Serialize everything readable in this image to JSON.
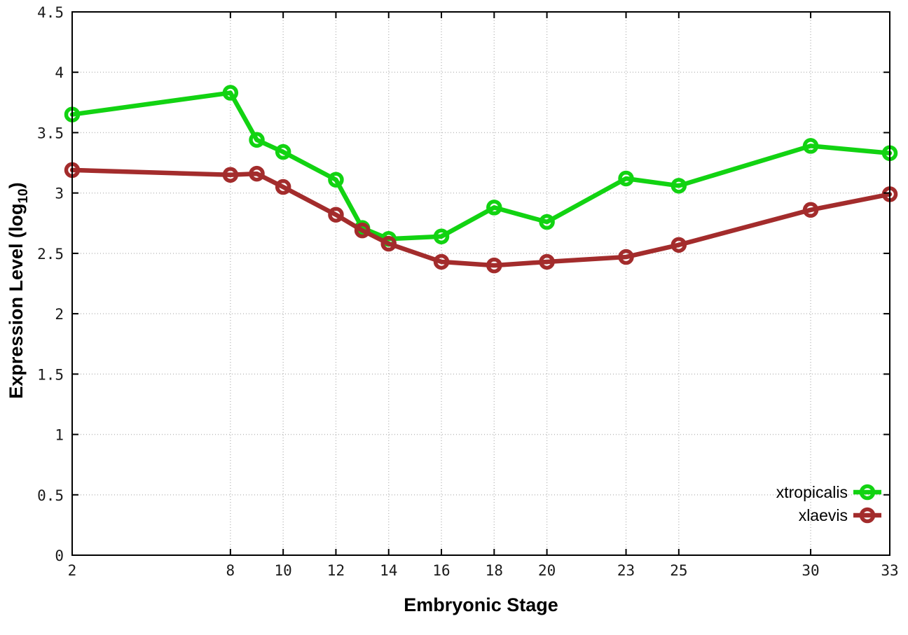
{
  "chart_data": {
    "type": "line",
    "title": "",
    "xlabel": "Embryonic Stage",
    "ylabel": {
      "prefix": "Expression Level (log",
      "sub": "10",
      "suffix": ")"
    },
    "x": [
      2,
      8,
      9,
      10,
      12,
      13,
      14,
      16,
      18,
      20,
      23,
      25,
      30,
      33
    ],
    "series": [
      {
        "name": "xtropicalis",
        "color": "#12d312",
        "values": [
          3.65,
          3.83,
          3.44,
          3.34,
          3.11,
          2.71,
          2.62,
          2.64,
          2.88,
          2.76,
          3.12,
          3.06,
          3.39,
          3.33
        ]
      },
      {
        "name": "xlaevis",
        "color": "#a32c2c",
        "values": [
          3.19,
          3.15,
          3.16,
          3.05,
          2.82,
          2.69,
          2.58,
          2.43,
          2.4,
          2.43,
          2.47,
          2.57,
          2.86,
          2.99
        ]
      }
    ],
    "xticks": {
      "values": [
        2,
        8,
        10,
        12,
        14,
        16,
        18,
        20,
        23,
        25,
        30,
        33
      ],
      "labels": [
        "2",
        "8",
        "10",
        "12",
        "14",
        "16",
        "18",
        "20",
        "23",
        "25",
        "30",
        "33"
      ]
    },
    "yticks": {
      "values": [
        0,
        0.5,
        1,
        1.5,
        2,
        2.5,
        3,
        3.5,
        4,
        4.5
      ],
      "labels": [
        "0",
        "0.5",
        "1",
        "1.5",
        "2",
        "2.5",
        "3",
        "3.5",
        "4",
        "4.5"
      ]
    },
    "xlim": [
      2,
      33
    ],
    "ylim": [
      0,
      4.5
    ],
    "grid": true,
    "marker": "open-circle",
    "legend": {
      "position": "bottom-right",
      "entries": [
        "xtropicalis",
        "xlaevis"
      ]
    },
    "axis_color": "#000000",
    "grid_color": "#b9b9b9"
  }
}
